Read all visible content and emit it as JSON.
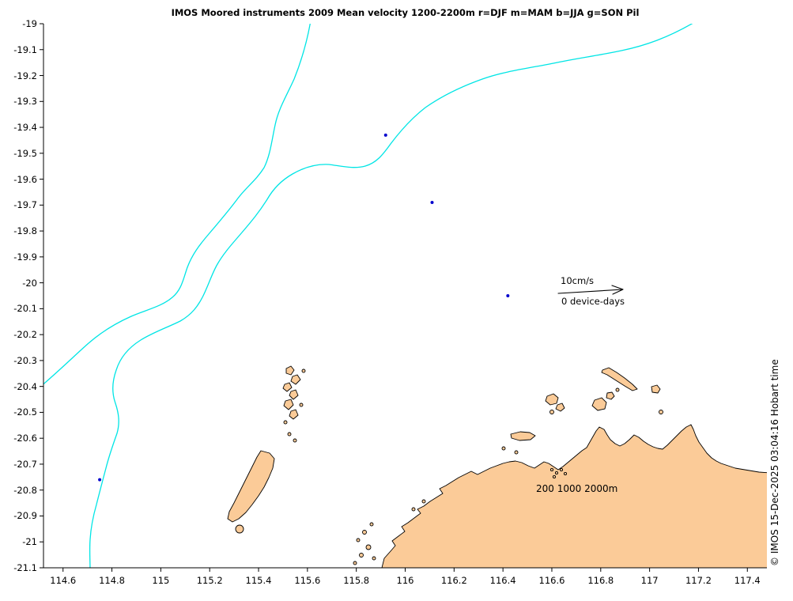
{
  "figure": {
    "title": "IMOS Moored instruments 2009 Mean velocity 1200-2200m r=DJF m=MAM b=JJA g=SON Pil",
    "attribution": "© IMOS 15-Dec-2025 03:04:16 Hobart time"
  },
  "scale_legend": {
    "speed": "10cm/s",
    "device_days": "0 device-days"
  },
  "contour_legend": {
    "label": "200 1000 2000m"
  },
  "colors": {
    "background": "#FFFFFF",
    "contour": "#00E5E5",
    "land": "#FBCB98",
    "coastline": "#000000",
    "point": "#0000CD",
    "text": "#000000"
  },
  "chart_data": {
    "type": "scatter",
    "title": "IMOS Moored instruments 2009 Mean velocity 1200-2200m r=DJF m=MAM b=JJA g=SON Pil",
    "xlabel": "",
    "ylabel": "",
    "xlim": [
      114.52,
      117.48
    ],
    "ylim": [
      -21.1,
      -19
    ],
    "x_ticks": [
      "114.6",
      "114.8",
      "115",
      "115.2",
      "115.4",
      "115.6",
      "115.8",
      "116",
      "116.2",
      "116.4",
      "116.6",
      "116.8",
      "117",
      "117.2",
      "117.4"
    ],
    "y_ticks": [
      "-19",
      "-19.1",
      "-19.2",
      "-19.3",
      "-19.4",
      "-19.5",
      "-19.6",
      "-19.7",
      "-19.8",
      "-19.9",
      "-20",
      "-20.1",
      "-20.2",
      "-20.3",
      "-20.4",
      "-20.5",
      "-20.6",
      "-20.7",
      "-20.8",
      "-20.9",
      "-21",
      "-21.1"
    ],
    "points": [
      {
        "lon": 115.92,
        "lat": -19.43
      },
      {
        "lon": 116.11,
        "lat": -19.69
      },
      {
        "lon": 116.42,
        "lat": -20.05
      },
      {
        "lon": 114.75,
        "lat": -20.76
      }
    ],
    "velocity_scale_label": "10cm/s",
    "deployment_label": "0 device-days",
    "isobath_legend": "200 1000 2000m",
    "season_color_code": {
      "r": "DJF",
      "m": "MAM",
      "b": "JJA",
      "g": "SON"
    },
    "region_code": "Pil",
    "grid": false,
    "legend_position": "inside-right"
  }
}
